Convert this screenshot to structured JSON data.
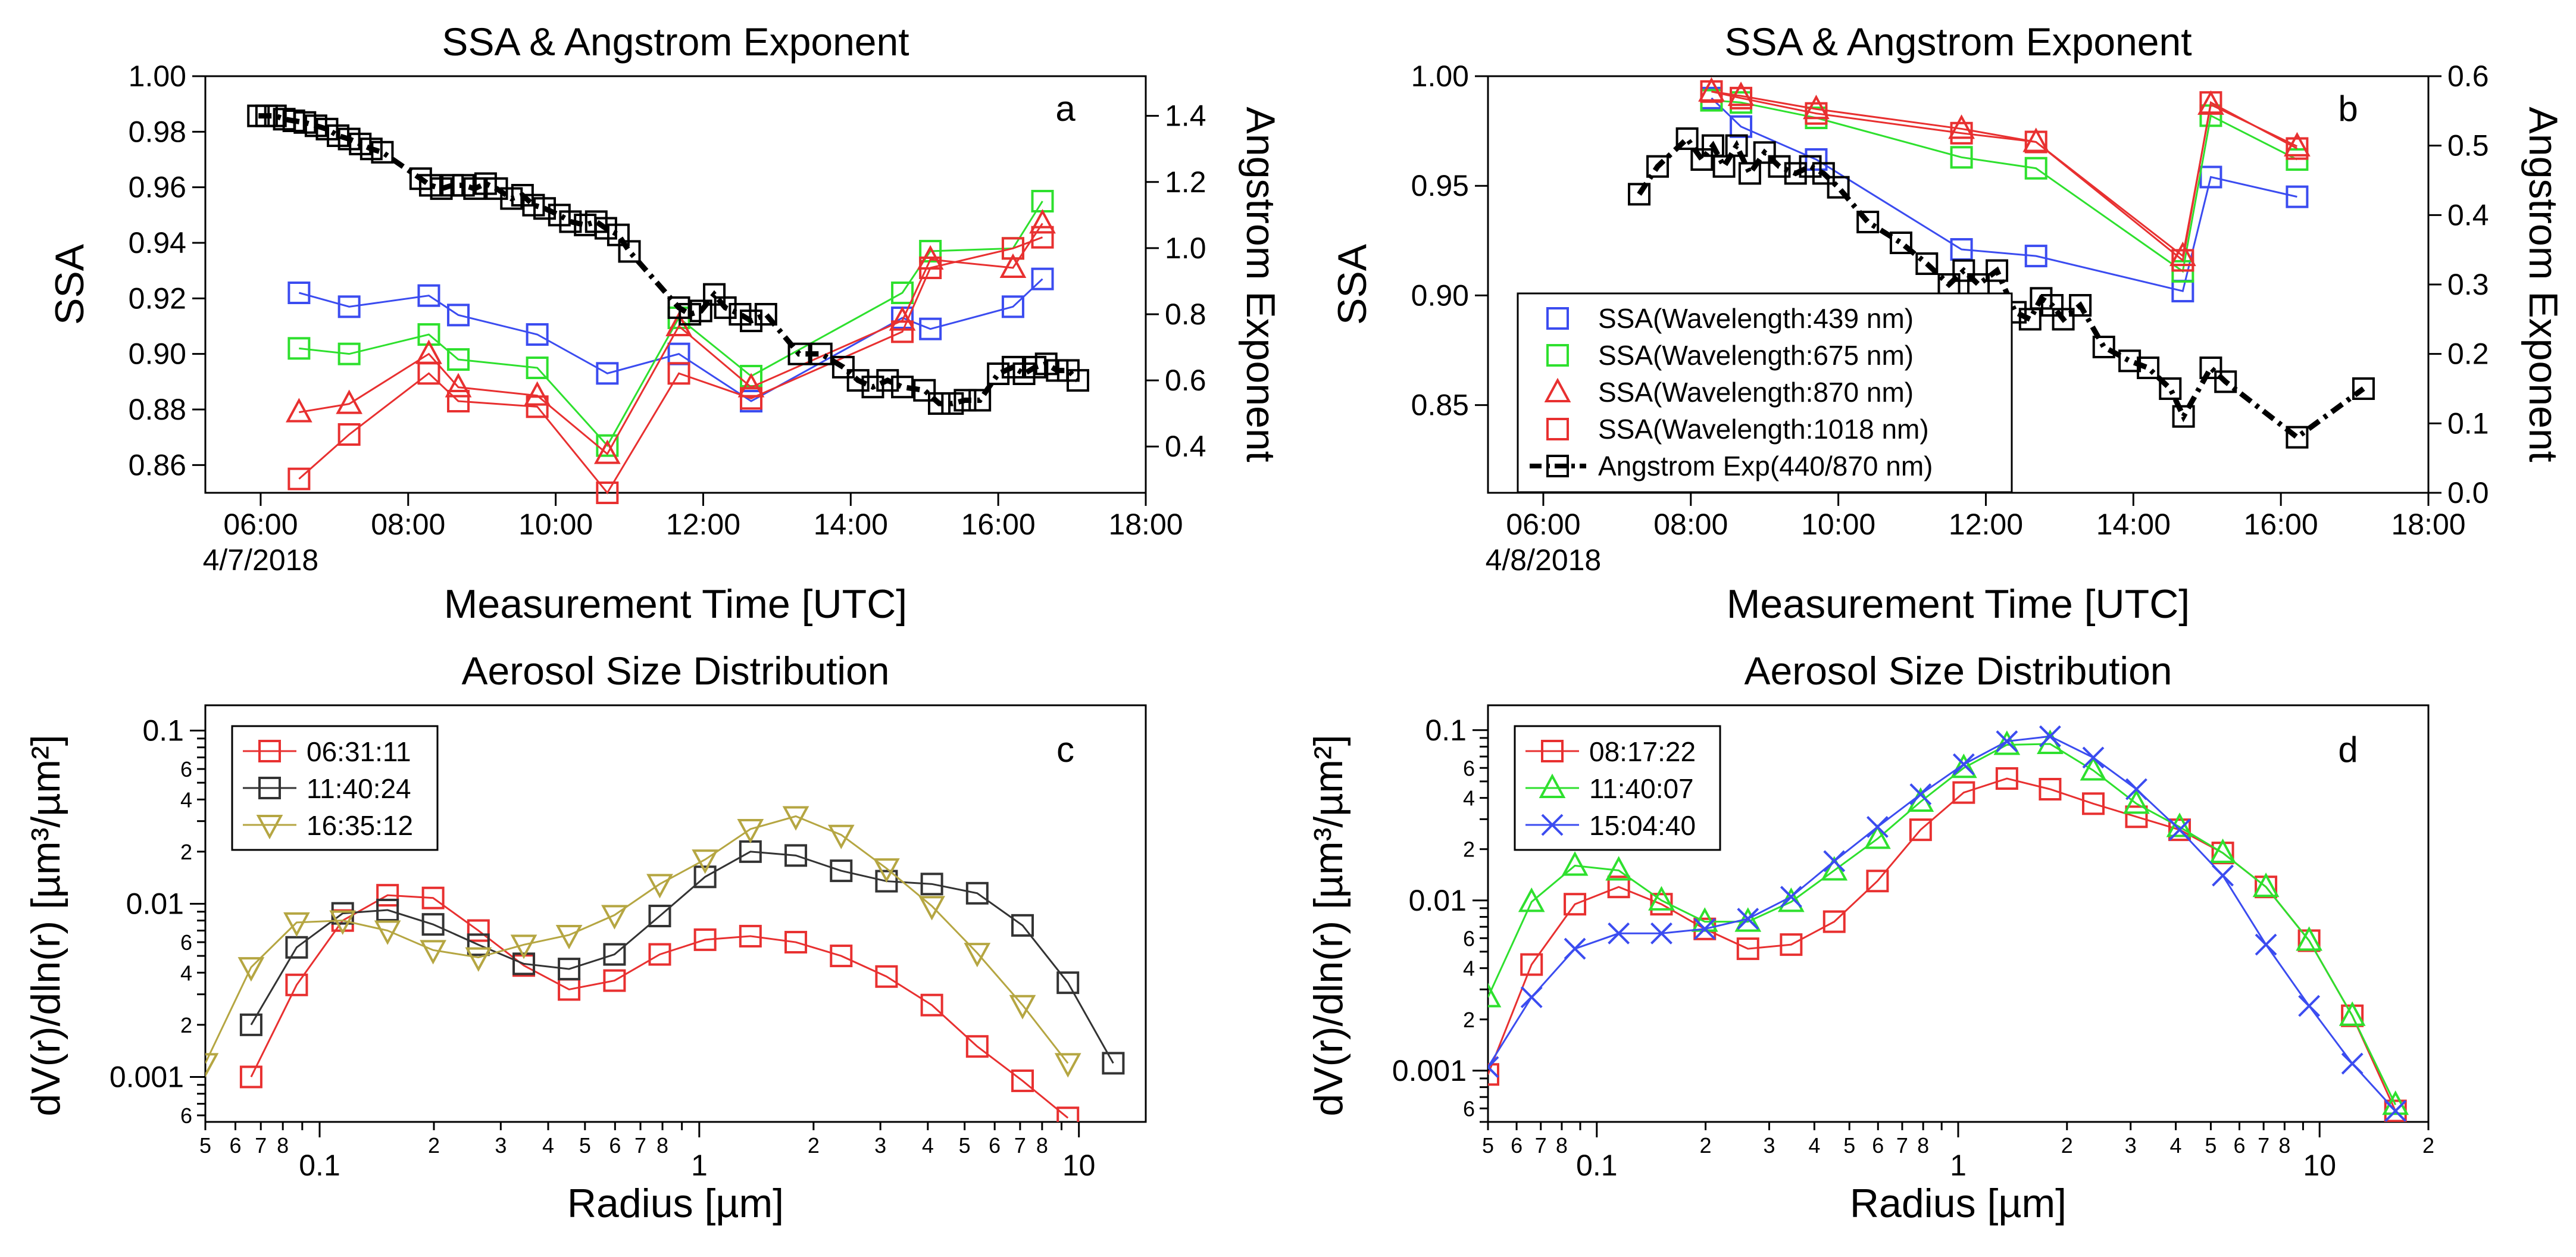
{
  "chart_data": [
    {
      "panel": "a",
      "type": "scatter",
      "title": "SSA & Angstrom Exponent",
      "xlabel": "Measurement Time [UTC]",
      "ylabel": "SSA",
      "y2label": "Angstrom Exponent",
      "xticks": [
        "06:00",
        "08:00",
        "10:00",
        "12:00",
        "14:00",
        "16:00",
        "18:00"
      ],
      "xdate": "4/7/2018",
      "xlim": [
        5.25,
        18
      ],
      "ylim": [
        0.85,
        1.0
      ],
      "y2lim": [
        0.26,
        1.52
      ],
      "yticks": [
        "1.00",
        "0.98",
        "0.96",
        "0.94",
        "0.92",
        "0.90",
        "0.88",
        "0.86"
      ],
      "y2ticks": [
        "1.4",
        "1.2",
        "1.0",
        "0.8",
        "0.6",
        "0.4"
      ],
      "series": [
        {
          "name": "SSA(Wavelength:439 nm)",
          "color": "#3b4cf0",
          "marker": "square",
          "x": [
            6.52,
            7.2,
            8.28,
            8.68,
            9.75,
            10.7,
            11.67,
            12.65,
            14.7,
            15.08,
            16.2,
            16.6
          ],
          "y": [
            0.922,
            0.917,
            0.921,
            0.914,
            0.907,
            0.893,
            0.9,
            0.883,
            0.913,
            0.909,
            0.917,
            0.927
          ]
        },
        {
          "name": "SSA(Wavelength:675 nm)",
          "color": "#2ee02e",
          "marker": "square",
          "x": [
            6.52,
            7.2,
            8.28,
            8.68,
            9.75,
            10.7,
            11.67,
            12.65,
            14.7,
            15.08,
            16.2,
            16.6
          ],
          "y": [
            0.902,
            0.9,
            0.907,
            0.898,
            0.895,
            0.867,
            0.913,
            0.892,
            0.922,
            0.937,
            0.938,
            0.955
          ]
        },
        {
          "name": "SSA(Wavelength:870 nm)",
          "color": "#e83030",
          "marker": "triangle",
          "x": [
            6.52,
            7.2,
            8.28,
            8.68,
            9.75,
            10.7,
            11.67,
            12.65,
            14.7,
            15.08,
            16.2,
            16.6
          ],
          "y": [
            0.879,
            0.882,
            0.9,
            0.888,
            0.885,
            0.864,
            0.91,
            0.888,
            0.912,
            0.934,
            0.931,
            0.947
          ]
        },
        {
          "name": "SSA(Wavelength:1018 nm)",
          "color": "#e83030",
          "marker": "square",
          "x": [
            6.52,
            7.2,
            8.28,
            8.68,
            9.75,
            10.7,
            11.67,
            12.65,
            14.7,
            15.08,
            16.2,
            16.6
          ],
          "y": [
            0.855,
            0.871,
            0.893,
            0.883,
            0.881,
            0.85,
            0.893,
            0.884,
            0.908,
            0.931,
            0.938,
            0.942
          ]
        },
        {
          "name": "Angstrom Exp(440/870 nm)",
          "color": "#000000",
          "marker": "square",
          "axis": "y2",
          "x": [
            5.97,
            6.08,
            6.2,
            6.32,
            6.45,
            6.6,
            6.75,
            6.9,
            7.05,
            7.2,
            7.35,
            7.5,
            7.65,
            8.17,
            8.3,
            8.45,
            8.6,
            8.75,
            8.9,
            9.05,
            9.2,
            9.4,
            9.55,
            9.7,
            9.85,
            10.05,
            10.2,
            10.4,
            10.55,
            10.68,
            10.85,
            11.0,
            11.67,
            11.82,
            11.97,
            12.15,
            12.3,
            12.5,
            12.65,
            12.85,
            13.3,
            13.6,
            13.9,
            14.1,
            14.3,
            14.5,
            14.7,
            15.0,
            15.2,
            15.38,
            15.55,
            15.75,
            16.0,
            16.2,
            16.35,
            16.5,
            16.65,
            16.8,
            16.95,
            17.08
          ],
          "y": [
            1.4,
            1.4,
            1.4,
            1.39,
            1.385,
            1.38,
            1.37,
            1.36,
            1.34,
            1.33,
            1.315,
            1.3,
            1.29,
            1.21,
            1.19,
            1.18,
            1.19,
            1.19,
            1.18,
            1.195,
            1.18,
            1.15,
            1.16,
            1.13,
            1.12,
            1.1,
            1.08,
            1.07,
            1.08,
            1.06,
            1.04,
            0.99,
            0.82,
            0.8,
            0.81,
            0.86,
            0.82,
            0.8,
            0.78,
            0.8,
            0.68,
            0.68,
            0.64,
            0.6,
            0.58,
            0.6,
            0.58,
            0.57,
            0.53,
            0.53,
            0.54,
            0.54,
            0.62,
            0.64,
            0.62,
            0.64,
            0.65,
            0.63,
            0.63,
            0.6
          ]
        }
      ]
    },
    {
      "panel": "b",
      "type": "scatter",
      "title": "SSA & Angstrom Exponent",
      "xlabel": "Measurement Time [UTC]",
      "ylabel": "SSA",
      "y2label": "Angstrom Exponent",
      "xticks": [
        "06:00",
        "08:00",
        "10:00",
        "12:00",
        "14:00",
        "16:00",
        "18:00"
      ],
      "xdate": "4/8/2018",
      "xlim": [
        5.25,
        18
      ],
      "ylim": [
        0.81,
        1.0
      ],
      "y2lim": [
        0.0,
        0.6
      ],
      "yticks": [
        "1.00",
        "0.95",
        "0.90",
        "0.85"
      ],
      "y2ticks": [
        "0.6",
        "0.5",
        "0.4",
        "0.3",
        "0.2",
        "0.1",
        "0.0"
      ],
      "legend": "bottom-left",
      "series": [
        {
          "name": "SSA(Wavelength:439 nm)",
          "color": "#3b4cf0",
          "marker": "square",
          "x": [
            8.28,
            8.68,
            9.7,
            11.67,
            12.68,
            14.67,
            15.05,
            16.22
          ],
          "y": [
            0.99,
            0.977,
            0.962,
            0.921,
            0.918,
            0.902,
            0.954,
            0.945
          ]
        },
        {
          "name": "SSA(Wavelength:675 nm)",
          "color": "#2ee02e",
          "marker": "square",
          "x": [
            8.28,
            8.68,
            9.7,
            11.67,
            12.68,
            14.67,
            15.05,
            16.22
          ],
          "y": [
            0.989,
            0.988,
            0.981,
            0.963,
            0.958,
            0.911,
            0.982,
            0.962
          ]
        },
        {
          "name": "SSA(Wavelength:870 nm)",
          "color": "#e83030",
          "marker": "triangle",
          "x": [
            8.28,
            8.68,
            9.7,
            11.67,
            12.68,
            14.67,
            15.05,
            16.22
          ],
          "y": [
            0.993,
            0.991,
            0.985,
            0.976,
            0.97,
            0.918,
            0.987,
            0.968
          ]
        },
        {
          "name": "SSA(Wavelength:1018 nm)",
          "color": "#e83030",
          "marker": "square",
          "x": [
            8.28,
            8.68,
            9.7,
            11.67,
            12.68,
            14.67,
            15.05,
            16.22
          ],
          "y": [
            0.993,
            0.99,
            0.983,
            0.974,
            0.97,
            0.916,
            0.988,
            0.967
          ]
        },
        {
          "name": "Angstrom Exp(440/870 nm)",
          "color": "#000000",
          "marker": "square",
          "axis": "y2",
          "x": [
            7.3,
            7.55,
            7.95,
            8.15,
            8.3,
            8.45,
            8.62,
            8.8,
            9.0,
            9.2,
            9.42,
            9.62,
            9.8,
            10.0,
            10.4,
            10.85,
            11.2,
            11.5,
            11.7,
            11.9,
            12.15,
            12.4,
            12.6,
            12.75,
            12.9,
            13.05,
            13.28,
            13.6,
            13.95,
            14.2,
            14.5,
            14.68,
            15.05,
            15.25,
            16.22,
            17.12
          ],
          "y": [
            0.43,
            0.47,
            0.51,
            0.48,
            0.5,
            0.47,
            0.5,
            0.46,
            0.49,
            0.47,
            0.46,
            0.47,
            0.46,
            0.44,
            0.39,
            0.36,
            0.33,
            0.3,
            0.32,
            0.3,
            0.32,
            0.26,
            0.25,
            0.28,
            0.27,
            0.25,
            0.27,
            0.21,
            0.19,
            0.18,
            0.15,
            0.11,
            0.18,
            0.16,
            0.08,
            0.15
          ]
        }
      ]
    },
    {
      "panel": "c",
      "type": "line",
      "title": "Aerosol Size Distribution",
      "xlabel": "Radius  [µm]",
      "ylabel": "dV(r)/dln(r) [µm³/µm²]",
      "xscale": "log",
      "yscale": "log",
      "xlim": [
        0.05,
        15
      ],
      "ylim": [
        0.00055,
        0.14
      ],
      "xticks_major": [
        "0.1",
        "1",
        "10"
      ],
      "yticks_major": [
        "0.1",
        "0.01",
        "0.001"
      ],
      "legend": "top-left",
      "series": [
        {
          "name": "06:31:11",
          "color": "#e83030",
          "marker": "square",
          "x": [
            0.066,
            0.087,
            0.115,
            0.151,
            0.199,
            0.262,
            0.345,
            0.454,
            0.598,
            0.787,
            1.036,
            1.364,
            1.796,
            2.365,
            3.113,
            4.099,
            5.397,
            7.105,
            9.355
          ],
          "y": [
            0.001,
            0.0034,
            0.008,
            0.0112,
            0.0108,
            0.007,
            0.0044,
            0.0032,
            0.0036,
            0.0051,
            0.0062,
            0.0065,
            0.006,
            0.005,
            0.0038,
            0.0026,
            0.0015,
            0.00095,
            0.00058
          ]
        },
        {
          "name": "11:40:24",
          "color": "#333333",
          "marker": "square",
          "x": [
            0.066,
            0.087,
            0.115,
            0.151,
            0.199,
            0.262,
            0.345,
            0.454,
            0.598,
            0.787,
            1.036,
            1.364,
            1.796,
            2.365,
            3.113,
            4.099,
            5.397,
            7.105,
            9.355,
            12.317
          ],
          "y": [
            0.002,
            0.0056,
            0.0088,
            0.0092,
            0.0076,
            0.0058,
            0.0045,
            0.0042,
            0.0051,
            0.0085,
            0.0143,
            0.02,
            0.019,
            0.0155,
            0.0135,
            0.013,
            0.0115,
            0.0075,
            0.0035,
            0.0012
          ]
        },
        {
          "name": "16:35:12",
          "color": "#b5a642",
          "marker": "triangle-down",
          "x": [
            0.05,
            0.066,
            0.087,
            0.115,
            0.151,
            0.199,
            0.262,
            0.345,
            0.454,
            0.598,
            0.787,
            1.036,
            1.364,
            1.796,
            2.365,
            3.113,
            4.099,
            5.397,
            7.105,
            9.355
          ],
          "y": [
            0.0012,
            0.0043,
            0.0078,
            0.008,
            0.007,
            0.0054,
            0.0049,
            0.0058,
            0.0066,
            0.0086,
            0.013,
            0.018,
            0.027,
            0.032,
            0.025,
            0.016,
            0.0097,
            0.0052,
            0.0026,
            0.0012
          ]
        }
      ]
    },
    {
      "panel": "d",
      "type": "line",
      "title": "Aerosol Size Distribution",
      "xlabel": "Radius  [µm]",
      "ylabel": "dV(r)/dln(r) [µm³/µm²]",
      "xscale": "log",
      "yscale": "log",
      "xlim": [
        0.05,
        20
      ],
      "ylim": [
        0.0005,
        0.14
      ],
      "xticks_major": [
        "0.1",
        "1",
        "10"
      ],
      "yticks_major": [
        "0.1",
        "0.01",
        "0.001"
      ],
      "legend": "top-left",
      "series": [
        {
          "name": "08:17:22",
          "color": "#e83030",
          "marker": "square",
          "x": [
            0.05,
            0.066,
            0.087,
            0.115,
            0.151,
            0.199,
            0.262,
            0.345,
            0.454,
            0.598,
            0.787,
            1.036,
            1.364,
            1.796,
            2.365,
            3.113,
            4.099,
            5.397,
            7.105,
            9.355,
            12.317,
            16.217
          ],
          "y": [
            0.00095,
            0.0042,
            0.0095,
            0.012,
            0.0095,
            0.0068,
            0.0052,
            0.0055,
            0.0075,
            0.013,
            0.026,
            0.043,
            0.052,
            0.045,
            0.037,
            0.031,
            0.026,
            0.019,
            0.012,
            0.0058,
            0.0021,
            0.00058
          ]
        },
        {
          "name": "11:40:07",
          "color": "#2ee02e",
          "marker": "triangle",
          "x": [
            0.05,
            0.066,
            0.087,
            0.115,
            0.151,
            0.199,
            0.262,
            0.345,
            0.454,
            0.598,
            0.787,
            1.036,
            1.364,
            1.796,
            2.365,
            3.113,
            4.099,
            5.397,
            7.105,
            9.355,
            12.317,
            16.217
          ],
          "y": [
            0.0027,
            0.0098,
            0.016,
            0.015,
            0.01,
            0.0075,
            0.0075,
            0.0098,
            0.015,
            0.023,
            0.038,
            0.06,
            0.082,
            0.083,
            0.058,
            0.037,
            0.027,
            0.019,
            0.012,
            0.0058,
            0.0021,
            0.00063
          ]
        },
        {
          "name": "15:04:40",
          "color": "#3b4cf0",
          "marker": "x",
          "x": [
            0.05,
            0.066,
            0.087,
            0.115,
            0.151,
            0.199,
            0.262,
            0.345,
            0.454,
            0.598,
            0.787,
            1.036,
            1.364,
            1.796,
            2.365,
            3.113,
            4.099,
            5.397,
            7.105,
            9.355,
            12.317,
            16.217
          ],
          "y": [
            0.00105,
            0.0027,
            0.0052,
            0.0064,
            0.0064,
            0.0068,
            0.0078,
            0.0105,
            0.017,
            0.027,
            0.042,
            0.063,
            0.086,
            0.092,
            0.069,
            0.045,
            0.026,
            0.014,
            0.0055,
            0.0024,
            0.0011,
            0.00058
          ]
        }
      ]
    }
  ]
}
